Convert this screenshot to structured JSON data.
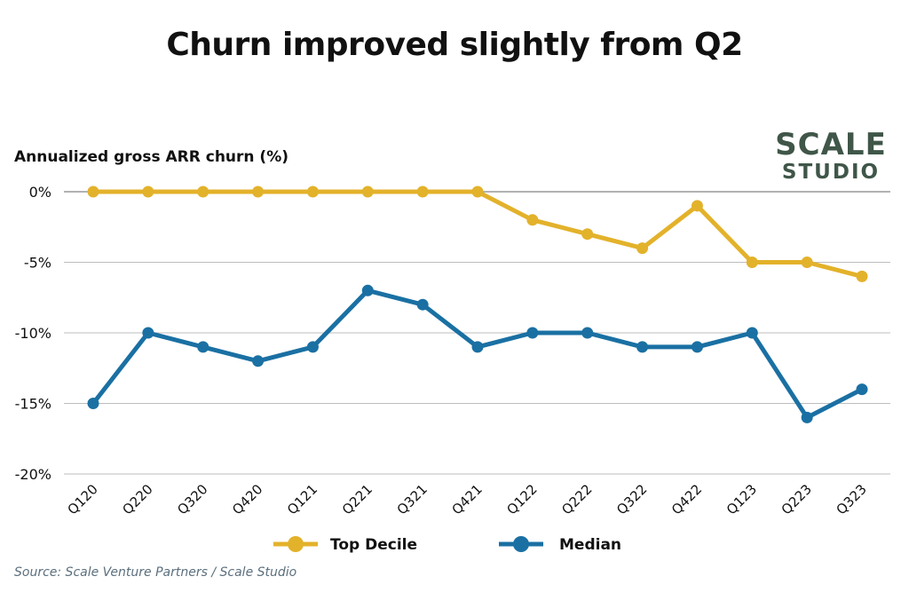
{
  "chart_data": {
    "type": "line",
    "title": "Churn improved slightly from Q2",
    "ylabel": "Annualized gross ARR churn (%)",
    "xlabel": "",
    "ylim": [
      -20,
      0
    ],
    "yticks": [
      0,
      -5,
      -10,
      -15,
      -20
    ],
    "ytick_labels": [
      "0%",
      "-5%",
      "-10%",
      "-15%",
      "-20%"
    ],
    "grid": true,
    "legend_placement": "bottom-center",
    "categories": [
      "Q120",
      "Q220",
      "Q320",
      "Q420",
      "Q121",
      "Q221",
      "Q321",
      "Q421",
      "Q122",
      "Q222",
      "Q322",
      "Q422",
      "Q123",
      "Q223",
      "Q323"
    ],
    "series": [
      {
        "name": "Top Decile",
        "color": "#e3b22b",
        "values": [
          0,
          0,
          0,
          0,
          0,
          0,
          0,
          0,
          -2,
          -3,
          -4,
          -1,
          -5,
          -5,
          -6
        ]
      },
      {
        "name": "Median",
        "color": "#1a70a3",
        "values": [
          -15,
          -10,
          -11,
          -12,
          -11,
          -7,
          -8,
          -11,
          -10,
          -10,
          -11,
          -11,
          -10,
          -16,
          -14
        ]
      }
    ]
  },
  "logo": {
    "line1": "SCALE",
    "line2": "STUDIO",
    "color": "#3f5649"
  },
  "source": "Source: Scale Venture Partners / Scale Studio"
}
